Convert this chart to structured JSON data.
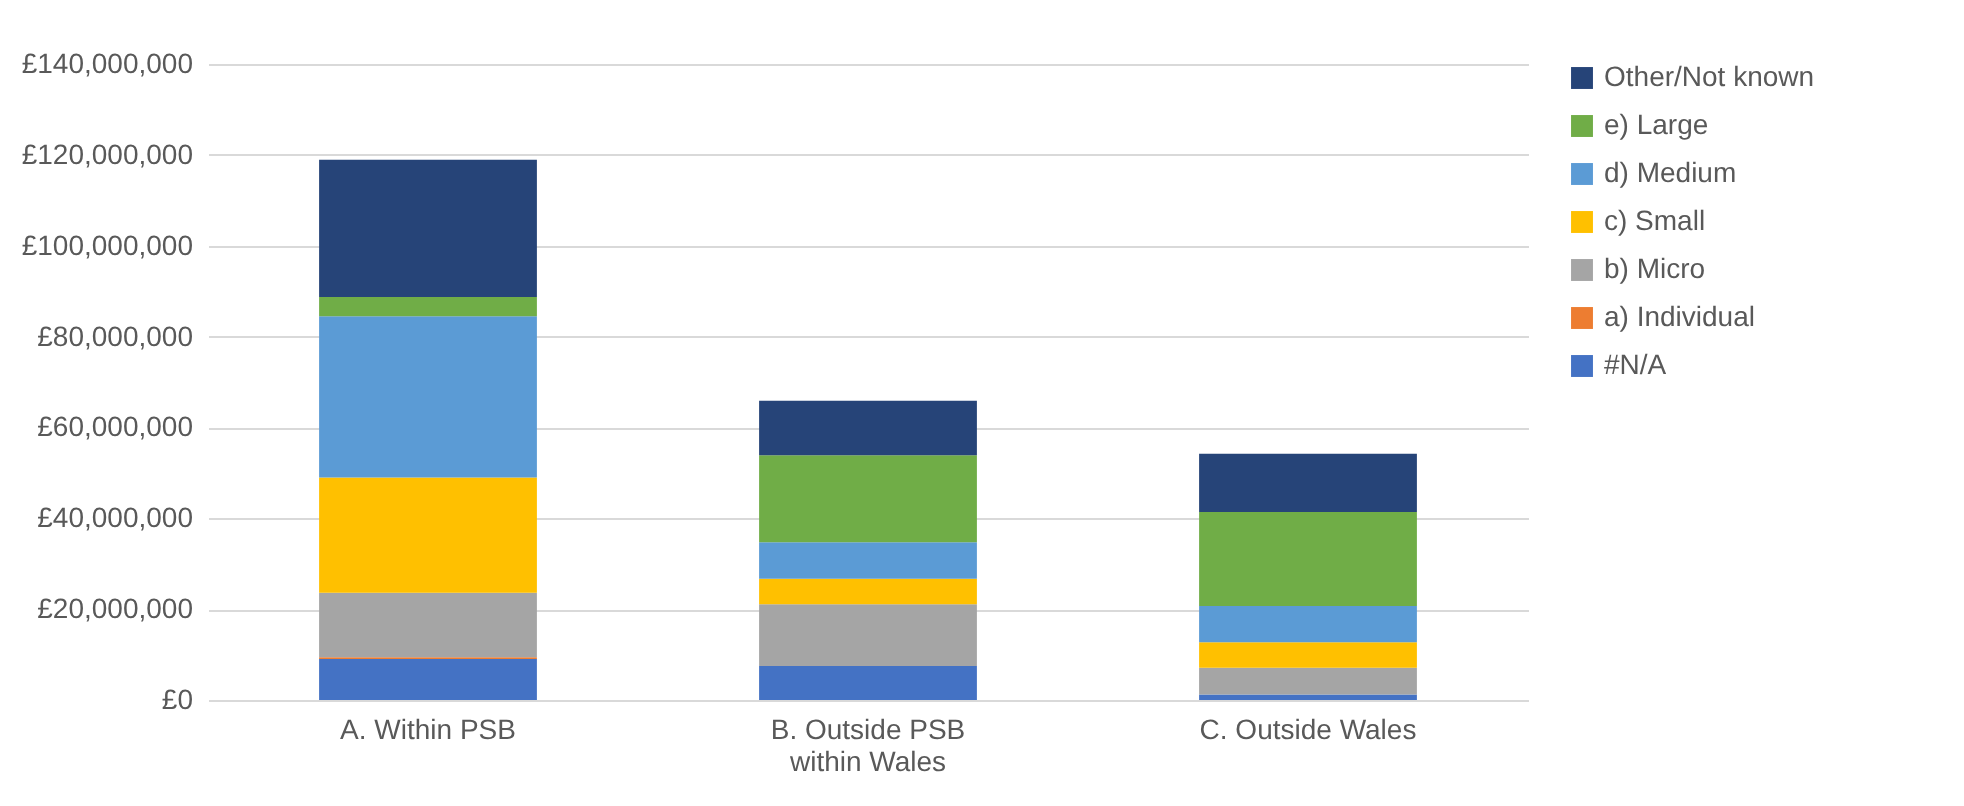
{
  "chart_data": {
    "type": "bar",
    "stacked": true,
    "categories": [
      "A. Within PSB",
      "B. Outside PSB within Wales",
      "C. Outside Wales"
    ],
    "series": [
      {
        "name": "#N/A",
        "color": "#4472c4",
        "values": [
          9000000,
          7500000,
          1200000
        ]
      },
      {
        "name": "a) Individual",
        "color": "#ed7d31",
        "values": [
          400000,
          0,
          0
        ]
      },
      {
        "name": "b) Micro",
        "color": "#a5a5a5",
        "values": [
          14200000,
          13600000,
          5900000
        ]
      },
      {
        "name": "c) Small",
        "color": "#ffc000",
        "values": [
          25400000,
          5600000,
          5600000
        ]
      },
      {
        "name": "d) Medium",
        "color": "#5b9bd5",
        "values": [
          35500000,
          8000000,
          8000000
        ]
      },
      {
        "name": "e) Large",
        "color": "#70ad47",
        "values": [
          4200000,
          19200000,
          20700000
        ]
      },
      {
        "name": "Other/Not known",
        "color": "#264478",
        "values": [
          30200000,
          12000000,
          12800000
        ]
      }
    ],
    "ylim": [
      0,
      140000000
    ],
    "yticks": [
      {
        "value": 0,
        "label": "£0"
      },
      {
        "value": 20000000,
        "label": "£20,000,000"
      },
      {
        "value": 40000000,
        "label": "£40,000,000"
      },
      {
        "value": 60000000,
        "label": "£60,000,000"
      },
      {
        "value": 80000000,
        "label": "£80,000,000"
      },
      {
        "value": 100000000,
        "label": "£100,000,000"
      },
      {
        "value": 120000000,
        "label": "£120,000,000"
      },
      {
        "value": 140000000,
        "label": "£140,000,000"
      }
    ],
    "grid": "y",
    "legend": "right"
  }
}
